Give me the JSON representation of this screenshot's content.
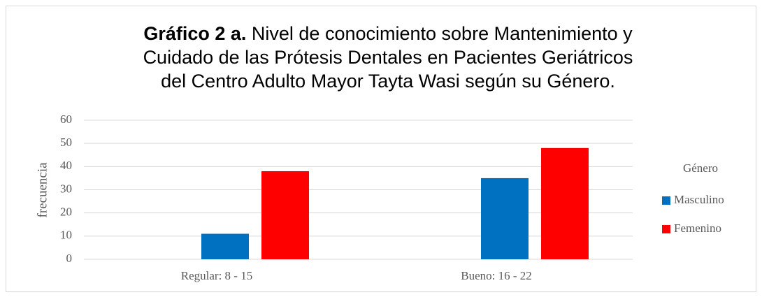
{
  "chart_data": {
    "type": "bar",
    "title_label": "Gráfico 2 a.",
    "title": [
      "Nivel de conocimiento sobre Mantenimiento y",
      "Cuidado de las Prótesis Dentales en Pacientes Geriátricos",
      "del Centro Adulto Mayor Tayta Wasi según su Género."
    ],
    "y_label": "frecuencia",
    "legend_title": "Género",
    "legend_position": "right",
    "categories": [
      "Regular: 8 - 15",
      "Bueno: 16 - 22"
    ],
    "series": [
      {
        "name": "Masculino",
        "color": "#0070c0",
        "values": [
          11,
          35
        ]
      },
      {
        "name": "Femenino",
        "color": "#ff0000",
        "values": [
          38,
          48
        ]
      }
    ],
    "ylim": [
      0,
      60
    ],
    "yticks": [
      0,
      10,
      20,
      30,
      40,
      50,
      60
    ],
    "grid": true
  }
}
